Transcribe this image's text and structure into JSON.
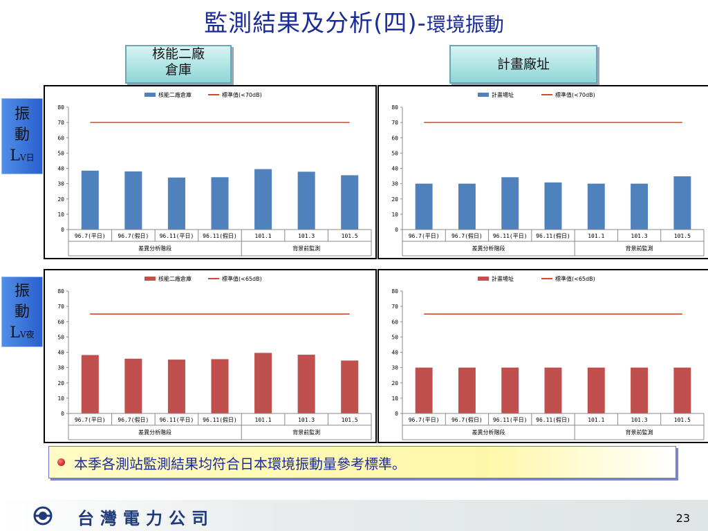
{
  "title": {
    "main": "監測結果及分析(四)-",
    "sub": "環境振動"
  },
  "headers": {
    "left": "核能二廠\n倉庫",
    "right": "計畫廠址"
  },
  "side_labels": {
    "day": {
      "chars": "振\n動",
      "letter": "L",
      "sub": "V日"
    },
    "night": {
      "chars": "振\n動",
      "letter": "L",
      "sub": "V夜"
    }
  },
  "colors": {
    "blue_bar": "#4f81bd",
    "red_bar": "#c0504d",
    "standard_line": "#d0492e"
  },
  "chart_data": [
    {
      "type": "bar",
      "categories": [
        "96.7(平日)",
        "96.7(假日)",
        "96.11(平日)",
        "96.11(假日)",
        "101.1",
        "101.3",
        "101.5"
      ],
      "groups": [
        {
          "label": "差異分析階段",
          "span": 4
        },
        {
          "label": "背景前監測",
          "span": 3
        }
      ],
      "series": [
        {
          "name": "核能二廠倉庫",
          "values": [
            38.5,
            38,
            34,
            34.2,
            39.5,
            37.8,
            35.5
          ],
          "color": "#4f81bd"
        },
        {
          "name": "標準值(<70dB)",
          "values": [
            70,
            70,
            70,
            70,
            70,
            70,
            70
          ],
          "color": "#d0492e",
          "kind": "line"
        }
      ],
      "ylim": [
        0,
        80
      ],
      "yticks": [
        0,
        10,
        20,
        30,
        40,
        50,
        60,
        70,
        80
      ]
    },
    {
      "type": "bar",
      "categories": [
        "96.7(平日)",
        "96.7(假日)",
        "96.11(平日)",
        "96.11(假日)",
        "101.1",
        "101.3",
        "101.5"
      ],
      "groups": [
        {
          "label": "差異分析階段",
          "span": 4
        },
        {
          "label": "背景前監測",
          "span": 3
        }
      ],
      "series": [
        {
          "name": "計畫場址",
          "values": [
            30,
            30,
            34.2,
            30.8,
            30,
            30,
            34.8
          ],
          "color": "#4f81bd"
        },
        {
          "name": "標準值(<70dB)",
          "values": [
            70,
            70,
            70,
            70,
            70,
            70,
            70
          ],
          "color": "#d0492e",
          "kind": "line"
        }
      ],
      "ylim": [
        0,
        80
      ],
      "yticks": [
        0,
        10,
        20,
        30,
        40,
        50,
        60,
        70,
        80
      ]
    },
    {
      "type": "bar",
      "categories": [
        "96.7(平日)",
        "96.7(假日)",
        "96.11(平日)",
        "96.11(假日)",
        "101.1",
        "101.3",
        "101.5"
      ],
      "groups": [
        {
          "label": "差異分析階段",
          "span": 4
        },
        {
          "label": "背景前監測",
          "span": 3
        }
      ],
      "series": [
        {
          "name": "核能二廠倉庫",
          "values": [
            38.2,
            35.8,
            35.2,
            35.5,
            39.6,
            38.4,
            34.6
          ],
          "color": "#c0504d"
        },
        {
          "name": "標準值(<65dB)",
          "values": [
            65,
            65,
            65,
            65,
            65,
            65,
            65
          ],
          "color": "#d0492e",
          "kind": "line"
        }
      ],
      "ylim": [
        0,
        80
      ],
      "yticks": [
        0,
        10,
        20,
        30,
        40,
        50,
        60,
        70,
        80
      ]
    },
    {
      "type": "bar",
      "categories": [
        "96.7(平日)",
        "96.7(假日)",
        "96.11(平日)",
        "96.11(假日)",
        "101.1",
        "101.3",
        "101.5"
      ],
      "groups": [
        {
          "label": "差異分析階段",
          "span": 4
        },
        {
          "label": "背景前監測",
          "span": 3
        }
      ],
      "series": [
        {
          "name": "計畫場址",
          "values": [
            30,
            30,
            30,
            30,
            30,
            30,
            30
          ],
          "color": "#c0504d"
        },
        {
          "name": "標準值(<65dB)",
          "values": [
            65,
            65,
            65,
            65,
            65,
            65,
            65
          ],
          "color": "#d0492e",
          "kind": "line"
        }
      ],
      "ylim": [
        0,
        80
      ],
      "yticks": [
        0,
        10,
        20,
        30,
        40,
        50,
        60,
        70,
        80
      ]
    }
  ],
  "note": "本季各測站監測結果均符合日本環境振動量參考標準。",
  "footer": {
    "company": "台灣電力公司",
    "page": "23"
  }
}
